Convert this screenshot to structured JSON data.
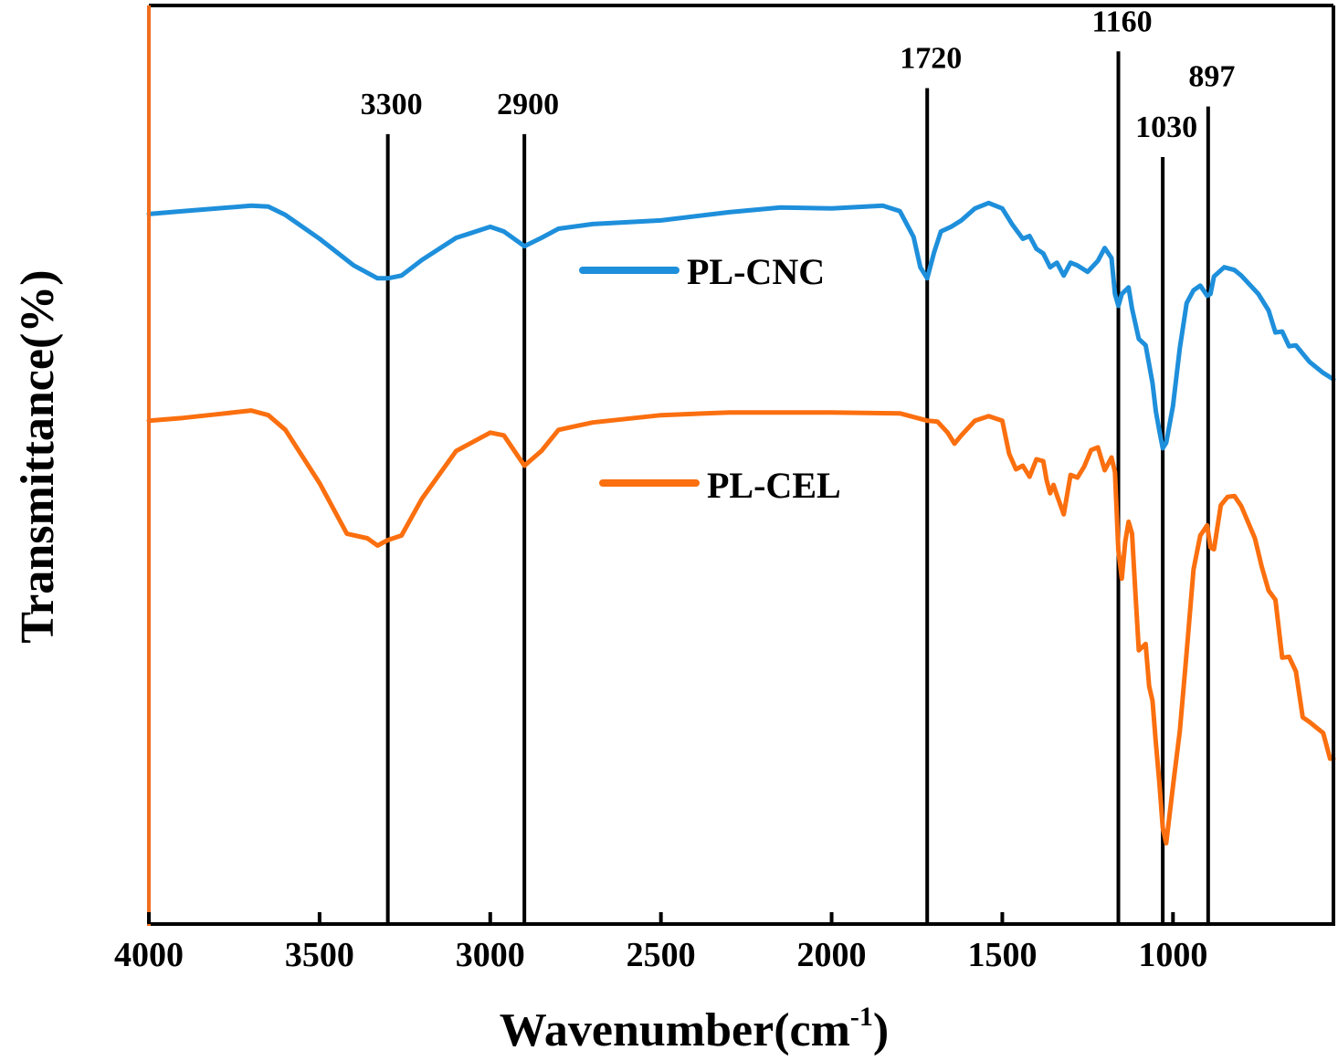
{
  "chart_data": {
    "type": "line",
    "title": "",
    "xlabel": "Wavenumber(cm",
    "xlabel_sup": "-1",
    "xlabel_close": ")",
    "ylabel": "Transmittance(%)",
    "xlim": [
      4000,
      530
    ],
    "ylim": [
      0,
      100
    ],
    "x_ticks": [
      4000,
      3500,
      3000,
      2500,
      2000,
      1500,
      1000
    ],
    "x_tick_labels": [
      "4000",
      "3500",
      "3000",
      "2500",
      "2000",
      "1500",
      "1000"
    ],
    "y_ticks_shown": false,
    "grid": false,
    "legend_position": "center",
    "left_axis_color": "#f26d1d",
    "peak_lines": [
      {
        "x": 3300,
        "label": "3300",
        "top": 86
      },
      {
        "x": 2900,
        "label": "2900",
        "top": 86
      },
      {
        "x": 1720,
        "label": "1720",
        "top": 91
      },
      {
        "x": 1160,
        "label": "1160",
        "top": 95
      },
      {
        "x": 1030,
        "label": "1030",
        "top": 83.5
      },
      {
        "x": 897,
        "label": "897",
        "top": 89
      }
    ],
    "series": [
      {
        "name": "PL-CNC",
        "color": "#1e8fdb",
        "x": [
          4000,
          3900,
          3800,
          3700,
          3650,
          3600,
          3500,
          3400,
          3330,
          3300,
          3260,
          3200,
          3100,
          3000,
          2960,
          2900,
          2850,
          2800,
          2700,
          2500,
          2300,
          2150,
          2000,
          1850,
          1800,
          1760,
          1740,
          1720,
          1700,
          1680,
          1650,
          1620,
          1580,
          1540,
          1500,
          1470,
          1440,
          1420,
          1400,
          1380,
          1360,
          1340,
          1320,
          1300,
          1280,
          1250,
          1220,
          1200,
          1180,
          1170,
          1160,
          1150,
          1130,
          1120,
          1100,
          1080,
          1060,
          1050,
          1040,
          1030,
          1020,
          1000,
          980,
          960,
          940,
          920,
          900,
          890,
          880,
          850,
          820,
          800,
          750,
          720,
          700,
          680,
          660,
          640,
          600,
          560,
          530
        ],
        "y": [
          77.3,
          77.6,
          77.9,
          78.2,
          78.1,
          77.2,
          74.6,
          71.7,
          70.3,
          70.3,
          70.6,
          72.3,
          74.7,
          75.9,
          75.4,
          73.8,
          74.7,
          75.7,
          76.2,
          76.6,
          77.5,
          78.0,
          77.9,
          78.2,
          77.6,
          74.8,
          71.5,
          70.3,
          73.1,
          75.4,
          75.9,
          76.6,
          77.9,
          78.5,
          77.9,
          76.1,
          74.6,
          74.9,
          73.5,
          73.0,
          71.5,
          72.0,
          70.6,
          72.0,
          71.7,
          71.0,
          72.2,
          73.6,
          72.5,
          68.6,
          67.3,
          68.6,
          69.3,
          67.0,
          63.7,
          63.0,
          58.9,
          55.8,
          53.7,
          51.8,
          52.4,
          56.4,
          62.7,
          67.6,
          69.0,
          69.5,
          68.4,
          68.6,
          70.5,
          71.5,
          71.2,
          70.6,
          68.6,
          66.8,
          64.4,
          64.5,
          62.9,
          63.0,
          61.2,
          60.0,
          59.3
        ]
      },
      {
        "name": "PL-CEL",
        "color": "#fb6f0f",
        "x": [
          4000,
          3900,
          3800,
          3700,
          3650,
          3600,
          3500,
          3420,
          3360,
          3330,
          3300,
          3260,
          3200,
          3100,
          3000,
          2960,
          2900,
          2850,
          2800,
          2700,
          2500,
          2300,
          2000,
          1800,
          1720,
          1690,
          1660,
          1640,
          1620,
          1580,
          1540,
          1500,
          1480,
          1460,
          1440,
          1420,
          1400,
          1380,
          1370,
          1360,
          1350,
          1340,
          1320,
          1300,
          1280,
          1260,
          1240,
          1220,
          1200,
          1180,
          1170,
          1160,
          1150,
          1140,
          1130,
          1120,
          1110,
          1100,
          1080,
          1070,
          1060,
          1050,
          1040,
          1030,
          1020,
          1000,
          980,
          960,
          940,
          920,
          900,
          890,
          880,
          860,
          840,
          820,
          800,
          760,
          740,
          720,
          700,
          680,
          660,
          640,
          620,
          600,
          560,
          540,
          530
        ],
        "y": [
          54.8,
          55.1,
          55.5,
          55.9,
          55.4,
          53.8,
          48.0,
          42.5,
          42.0,
          41.2,
          41.8,
          42.3,
          46.3,
          51.5,
          53.5,
          53.2,
          49.9,
          51.5,
          53.8,
          54.6,
          55.4,
          55.7,
          55.7,
          55.6,
          54.8,
          54.7,
          53.5,
          52.3,
          53.2,
          54.8,
          55.3,
          54.8,
          51.2,
          49.5,
          49.9,
          48.7,
          50.6,
          50.4,
          48.3,
          46.9,
          47.8,
          46.7,
          44.6,
          48.9,
          48.6,
          49.8,
          51.6,
          51.9,
          49.4,
          50.8,
          49.2,
          40.7,
          37.6,
          41.6,
          43.8,
          42.5,
          36.0,
          29.8,
          30.5,
          25.9,
          24.3,
          19.7,
          15.4,
          10.5,
          8.8,
          15.0,
          21.0,
          29.6,
          38.6,
          42.3,
          43.4,
          41.0,
          40.8,
          45.6,
          46.5,
          46.6,
          45.5,
          42.0,
          38.9,
          36.3,
          35.3,
          29.0,
          29.1,
          27.5,
          22.5,
          22.0,
          20.8,
          18.0,
          18.0
        ]
      }
    ],
    "legend": [
      {
        "label": "PL-CNC",
        "color": "#1e8fdb"
      },
      {
        "label": "PL-CEL",
        "color": "#fb6f0f"
      }
    ]
  }
}
